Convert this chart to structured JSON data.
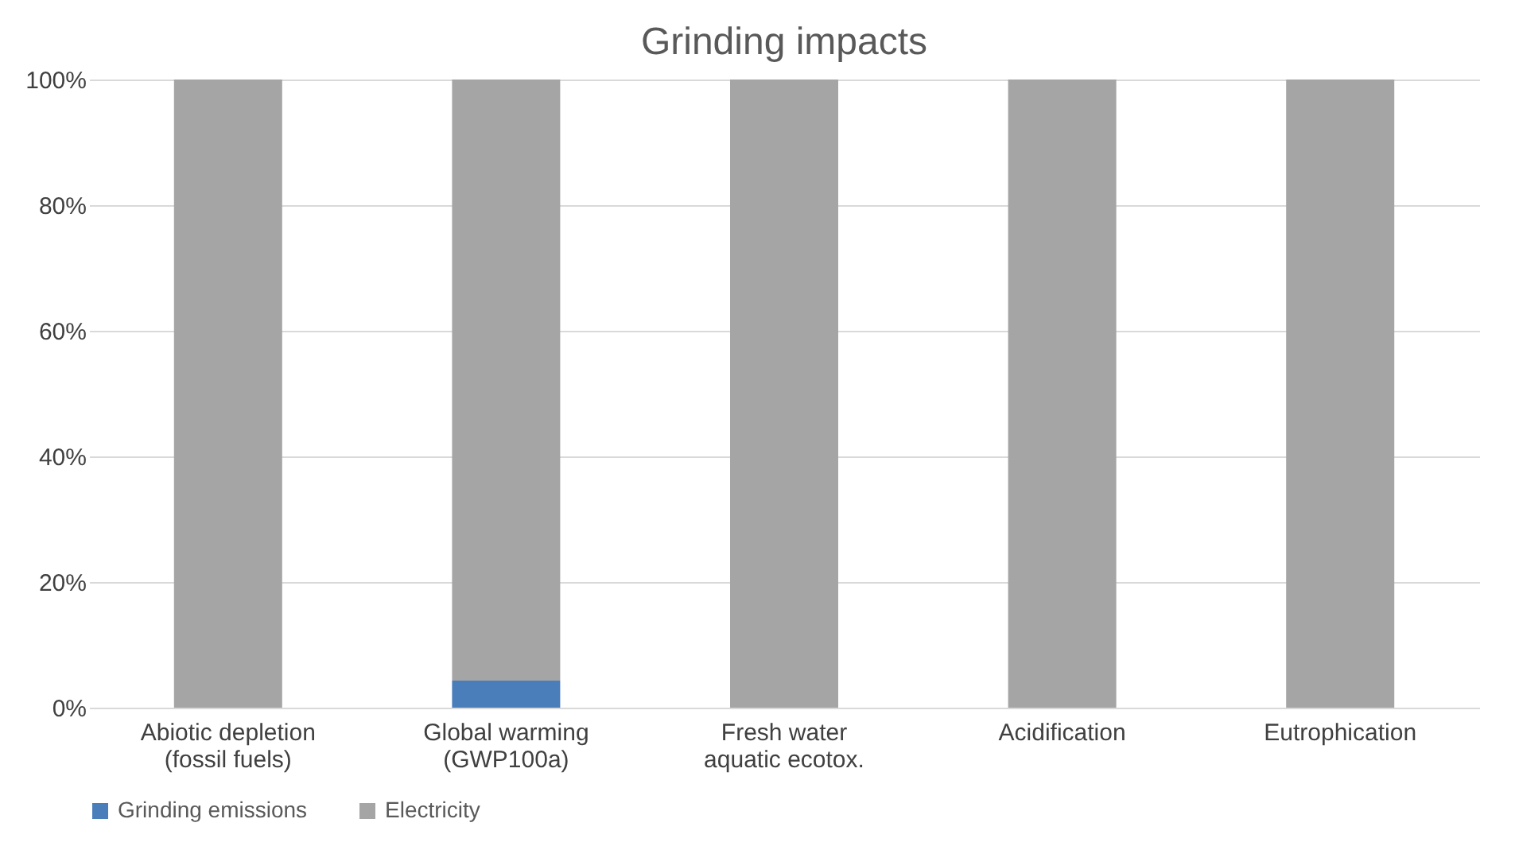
{
  "chart_data": {
    "type": "bar",
    "title": "Grinding impacts",
    "stacked": true,
    "categories": [
      "Abiotic depletion\n(fossil fuels)",
      "Global warming\n(GWP100a)",
      "Fresh water\naquatic ecotox.",
      "Acidification",
      "Eutrophication"
    ],
    "series": [
      {
        "name": "Grinding emissions",
        "color": "#4a7ebb",
        "values": [
          0,
          4.3,
          0,
          0,
          0
        ]
      },
      {
        "name": "Electricity",
        "color": "#a5a5a5",
        "values": [
          100,
          95.7,
          100,
          100,
          100
        ]
      }
    ],
    "ylim": [
      0,
      100
    ],
    "yticks": [
      {
        "value": 0,
        "label": "0%"
      },
      {
        "value": 20,
        "label": "20%"
      },
      {
        "value": 40,
        "label": "40%"
      },
      {
        "value": 60,
        "label": "60%"
      },
      {
        "value": 80,
        "label": "80%"
      },
      {
        "value": 100,
        "label": "100%"
      }
    ],
    "grid": "y",
    "legend": "bottom"
  }
}
